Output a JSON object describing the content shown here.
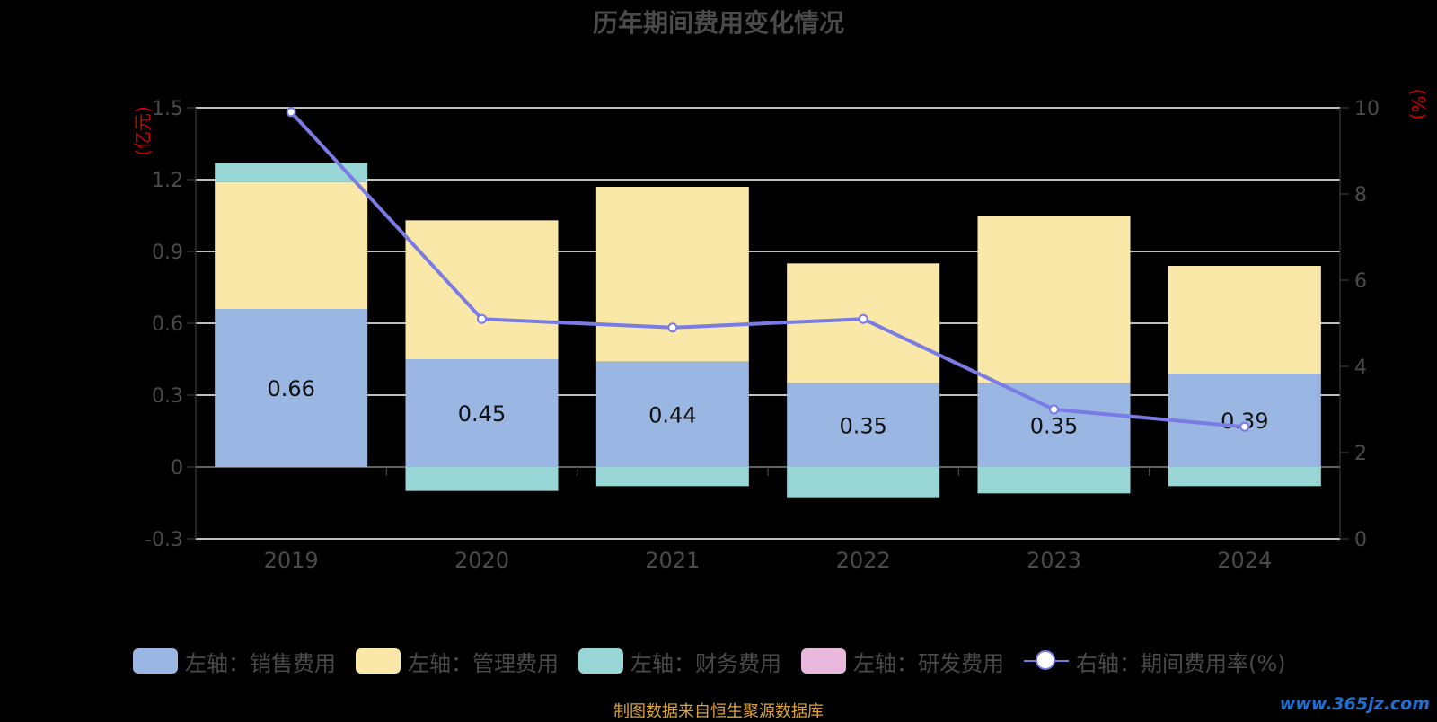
{
  "title": "历年期间费用变化情况",
  "left_unit": "(亿元)",
  "right_unit": "(%)",
  "source_note": "制图数据来自恒生聚源数据库",
  "watermark": "www.365jz.com",
  "colors": {
    "sales": "#9ab6e2",
    "admin": "#f9e8a8",
    "finance": "#99d6d6",
    "rnd": "#e8b8dd",
    "rate": "#7b7be6",
    "axis_text": "#4a4a4a",
    "unit_text": "#cc0000",
    "grid": "#ffffff"
  },
  "legend": [
    {
      "label": "左轴：销售费用",
      "key": "sales"
    },
    {
      "label": "左轴：管理费用",
      "key": "admin"
    },
    {
      "label": "左轴：财务费用",
      "key": "finance"
    },
    {
      "label": "左轴：研发费用",
      "key": "rnd"
    },
    {
      "label": "右轴：期间费用率(%)",
      "key": "rate"
    }
  ],
  "chart_data": {
    "type": "bar",
    "categories": [
      "2019",
      "2020",
      "2021",
      "2022",
      "2023",
      "2024"
    ],
    "series": [
      {
        "name": "左轴：销售费用",
        "axis": "left",
        "values": [
          0.66,
          0.45,
          0.44,
          0.35,
          0.35,
          0.39
        ],
        "labels": [
          "0.66",
          "0.45",
          "0.44",
          "0.35",
          "0.35",
          "0.39"
        ]
      },
      {
        "name": "左轴：管理费用",
        "axis": "left",
        "values": [
          0.53,
          0.58,
          0.73,
          0.5,
          0.7,
          0.45
        ]
      },
      {
        "name": "左轴：财务费用",
        "axis": "left",
        "values": [
          0.08,
          -0.1,
          -0.08,
          -0.13,
          -0.11,
          -0.08
        ]
      },
      {
        "name": "左轴：研发费用",
        "axis": "left",
        "values": [
          0,
          0,
          0,
          0,
          0,
          0
        ]
      },
      {
        "name": "右轴：期间费用率(%)",
        "axis": "right",
        "type": "line",
        "values": [
          9.9,
          5.1,
          4.9,
          5.1,
          3.0,
          2.6
        ]
      }
    ],
    "stacked": true,
    "left_axis": {
      "min": -0.3,
      "max": 1.5,
      "ticks": [
        "-0.3",
        "0",
        "0.3",
        "0.6",
        "0.9",
        "1.2",
        "1.5"
      ]
    },
    "right_axis": {
      "min": 0,
      "max": 10,
      "ticks": [
        "0",
        "2",
        "4",
        "6",
        "8",
        "10"
      ]
    },
    "grid": true,
    "legend_position": "bottom"
  }
}
